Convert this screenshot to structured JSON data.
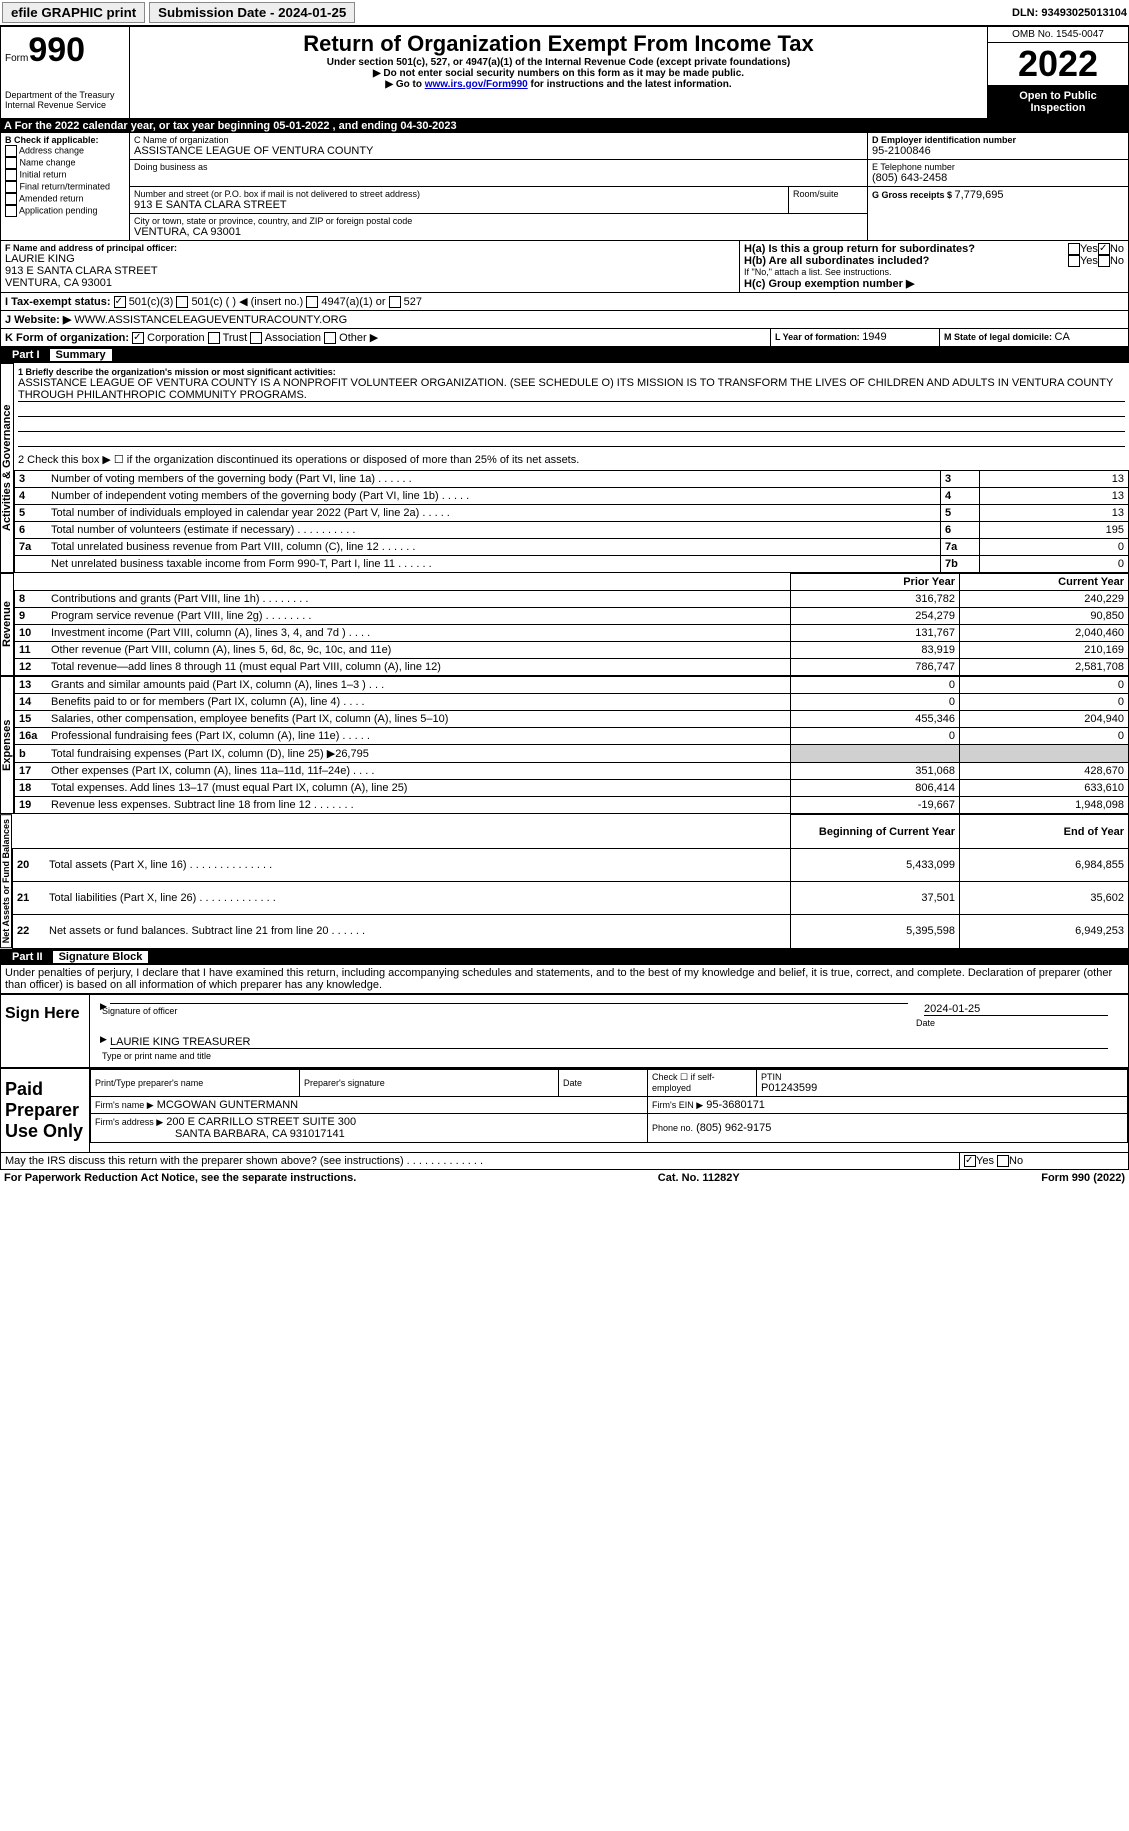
{
  "topbar": {
    "efile": "efile GRAPHIC print",
    "submission_label": "Submission Date - 2024-01-25",
    "dln": "DLN: 93493025013104"
  },
  "header": {
    "form_label": "Form",
    "form_number": "990",
    "dept": "Department of the Treasury\nInternal Revenue Service",
    "title": "Return of Organization Exempt From Income Tax",
    "subtitle": "Under section 501(c), 527, or 4947(a)(1) of the Internal Revenue Code (except private foundations)",
    "note1": "▶ Do not enter social security numbers on this form as it may be made public.",
    "note2_pre": "▶ Go to ",
    "note2_link": "www.irs.gov/Form990",
    "note2_post": " for instructions and the latest information.",
    "omb": "OMB No. 1545-0047",
    "year": "2022",
    "inspect": "Open to Public Inspection"
  },
  "sectionA": {
    "line": "A For the 2022 calendar year, or tax year beginning 05-01-2022     , and ending 04-30-2023",
    "B_label": "B Check if applicable:",
    "B_items": [
      "Address change",
      "Name change",
      "Initial return",
      "Final return/terminated",
      "Amended return",
      "Application pending"
    ],
    "C_label": "C Name of organization",
    "org_name": "ASSISTANCE LEAGUE OF VENTURA COUNTY",
    "dba_label": "Doing business as",
    "addr_label": "Number and street (or P.O. box if mail is not delivered to street address)",
    "room_label": "Room/suite",
    "street": "913 E SANTA CLARA STREET",
    "city_label": "City or town, state or province, country, and ZIP or foreign postal code",
    "city": "VENTURA, CA  93001",
    "D_label": "D Employer identification number",
    "ein": "95-2100846",
    "E_label": "E Telephone number",
    "phone": "(805) 643-2458",
    "G_label": "G Gross receipts $ ",
    "gross": "7,779,695",
    "F_label": "F  Name and address of principal officer:",
    "officer_name": "LAURIE KING",
    "officer_addr1": "913 E SANTA CLARA STREET",
    "officer_addr2": "VENTURA, CA  93001",
    "Ha": "H(a)  Is this a group return for subordinates?",
    "Hb": "H(b)  Are all subordinates included?",
    "Hb_note": "If \"No,\" attach a list. See instructions.",
    "Hc": "H(c)  Group exemption number ▶",
    "I_label": "I   Tax-exempt status:",
    "I_opts": [
      "501(c)(3)",
      "501(c) (  ) ◀ (insert no.)",
      "4947(a)(1) or",
      "527"
    ],
    "J_label": "J   Website: ▶",
    "website": "WWW.ASSISTANCELEAGUEVENTURACOUNTY.ORG",
    "K_label": "K Form of organization:",
    "K_opts": [
      "Corporation",
      "Trust",
      "Association",
      "Other ▶"
    ],
    "L_label": "L Year of formation: ",
    "L_val": "1949",
    "M_label": "M State of legal domicile: ",
    "M_val": "CA"
  },
  "part1": {
    "title": "Part I",
    "subtitle": "Summary",
    "q1_label": "1  Briefly describe the organization's mission or most significant activities:",
    "mission": "ASSISTANCE LEAGUE OF VENTURA COUNTY IS A NONPROFIT VOLUNTEER ORGANIZATION. (SEE SCHEDULE O) ITS MISSION IS TO TRANSFORM THE LIVES OF CHILDREN AND ADULTS IN VENTURA COUNTY THROUGH PHILANTHROPIC COMMUNITY PROGRAMS.",
    "q2": "2  Check this box ▶ ☐ if the organization discontinued its operations or disposed of more than 25% of its net assets.",
    "sidebars": {
      "gov": "Activities & Governance",
      "rev": "Revenue",
      "exp": "Expenses",
      "net": "Net Assets or Fund Balances"
    },
    "gov_rows": [
      {
        "n": "3",
        "t": "Number of voting members of the governing body (Part VI, line 1a)  .   .   .   .   .   .",
        "box": "3",
        "v": "13"
      },
      {
        "n": "4",
        "t": "Number of independent voting members of the governing body (Part VI, line 1b)  .   .   .   .   .",
        "box": "4",
        "v": "13"
      },
      {
        "n": "5",
        "t": "Total number of individuals employed in calendar year 2022 (Part V, line 2a)  .   .   .   .   .",
        "box": "5",
        "v": "13"
      },
      {
        "n": "6",
        "t": "Total number of volunteers (estimate if necessary)   .   .   .   .   .   .   .   .   .   .",
        "box": "6",
        "v": "195"
      },
      {
        "n": "7a",
        "t": "Total unrelated business revenue from Part VIII, column (C), line 12  .   .   .   .   .   .",
        "box": "7a",
        "v": "0"
      },
      {
        "n": "",
        "t": "Net unrelated business taxable income from Form 990-T, Part I, line 11  .   .   .   .   .   .",
        "box": "7b",
        "v": "0"
      }
    ],
    "pyh": {
      "py": "Prior Year",
      "cy": "Current Year"
    },
    "rev_rows": [
      {
        "n": "8",
        "t": "Contributions and grants (Part VIII, line 1h)   .   .   .   .   .   .   .   .",
        "py": "316,782",
        "cy": "240,229"
      },
      {
        "n": "9",
        "t": "Program service revenue (Part VIII, line 2g)   .   .   .   .   .   .   .   .",
        "py": "254,279",
        "cy": "90,850"
      },
      {
        "n": "10",
        "t": "Investment income (Part VIII, column (A), lines 3, 4, and 7d )   .   .   .   .",
        "py": "131,767",
        "cy": "2,040,460"
      },
      {
        "n": "11",
        "t": "Other revenue (Part VIII, column (A), lines 5, 6d, 8c, 9c, 10c, and 11e)",
        "py": "83,919",
        "cy": "210,169"
      },
      {
        "n": "12",
        "t": "Total revenue—add lines 8 through 11 (must equal Part VIII, column (A), line 12)",
        "py": "786,747",
        "cy": "2,581,708"
      }
    ],
    "exp_rows": [
      {
        "n": "13",
        "t": "Grants and similar amounts paid (Part IX, column (A), lines 1–3 )  .   .   .",
        "py": "0",
        "cy": "0"
      },
      {
        "n": "14",
        "t": "Benefits paid to or for members (Part IX, column (A), line 4)  .   .   .   .",
        "py": "0",
        "cy": "0"
      },
      {
        "n": "15",
        "t": "Salaries, other compensation, employee benefits (Part IX, column (A), lines 5–10)",
        "py": "455,346",
        "cy": "204,940"
      },
      {
        "n": "16a",
        "t": "Professional fundraising fees (Part IX, column (A), line 11e)  .   .   .   .   .",
        "py": "0",
        "cy": "0"
      },
      {
        "n": "b",
        "t": "Total fundraising expenses (Part IX, column (D), line 25) ▶26,795",
        "py": "",
        "cy": "",
        "grey": true
      },
      {
        "n": "17",
        "t": "Other expenses (Part IX, column (A), lines 11a–11d, 11f–24e)  .   .   .   .",
        "py": "351,068",
        "cy": "428,670"
      },
      {
        "n": "18",
        "t": "Total expenses. Add lines 13–17 (must equal Part IX, column (A), line 25)",
        "py": "806,414",
        "cy": "633,610"
      },
      {
        "n": "19",
        "t": "Revenue less expenses. Subtract line 18 from line 12  .   .   .   .   .   .   .",
        "py": "-19,667",
        "cy": "1,948,098"
      }
    ],
    "neth": {
      "py": "Beginning of Current Year",
      "cy": "End of Year"
    },
    "net_rows": [
      {
        "n": "20",
        "t": "Total assets (Part X, line 16)  .   .   .   .   .   .   .   .   .   .   .   .   .   .",
        "py": "5,433,099",
        "cy": "6,984,855"
      },
      {
        "n": "21",
        "t": "Total liabilities (Part X, line 26)  .   .   .   .   .   .   .   .   .   .   .   .   .",
        "py": "37,501",
        "cy": "35,602"
      },
      {
        "n": "22",
        "t": "Net assets or fund balances. Subtract line 21 from line 20  .   .   .   .   .   .",
        "py": "5,395,598",
        "cy": "6,949,253"
      }
    ]
  },
  "part2": {
    "title": "Part II",
    "subtitle": "Signature Block",
    "decl": "Under penalties of perjury, I declare that I have examined this return, including accompanying schedules and statements, and to the best of my knowledge and belief, it is true, correct, and complete. Declaration of preparer (other than officer) is based on all information of which preparer has any knowledge.",
    "sign_here": "Sign Here",
    "sig_officer": "Signature of officer",
    "sig_date_val": "2024-01-25",
    "sig_date": "Date",
    "sig_name": "LAURIE KING TREASURER",
    "sig_name_label": "Type or print name and title",
    "paid": "Paid Preparer Use Only",
    "p_name_label": "Print/Type preparer's name",
    "p_sig_label": "Preparer's signature",
    "p_date_label": "Date",
    "p_check": "Check ☐ if self-employed",
    "ptin_label": "PTIN",
    "ptin": "P01243599",
    "firm_label": "Firm's name     ▶",
    "firm": "MCGOWAN GUNTERMANN",
    "firm_ein_label": "Firm's EIN ▶",
    "firm_ein": "95-3680171",
    "firm_addr_label": "Firm's address ▶",
    "firm_addr1": "200 E CARRILLO STREET SUITE 300",
    "firm_addr2": "SANTA BARBARA, CA  931017141",
    "firm_phone_label": "Phone no.",
    "firm_phone": "(805) 962-9175",
    "discuss": "May the IRS discuss this return with the preparer shown above? (see instructions)   .   .   .   .   .   .   .   .   .   .   .   .   ."
  },
  "footer": {
    "notice": "For Paperwork Reduction Act Notice, see the separate instructions.",
    "cat": "Cat. No. 11282Y",
    "form": "Form 990 (2022)"
  }
}
